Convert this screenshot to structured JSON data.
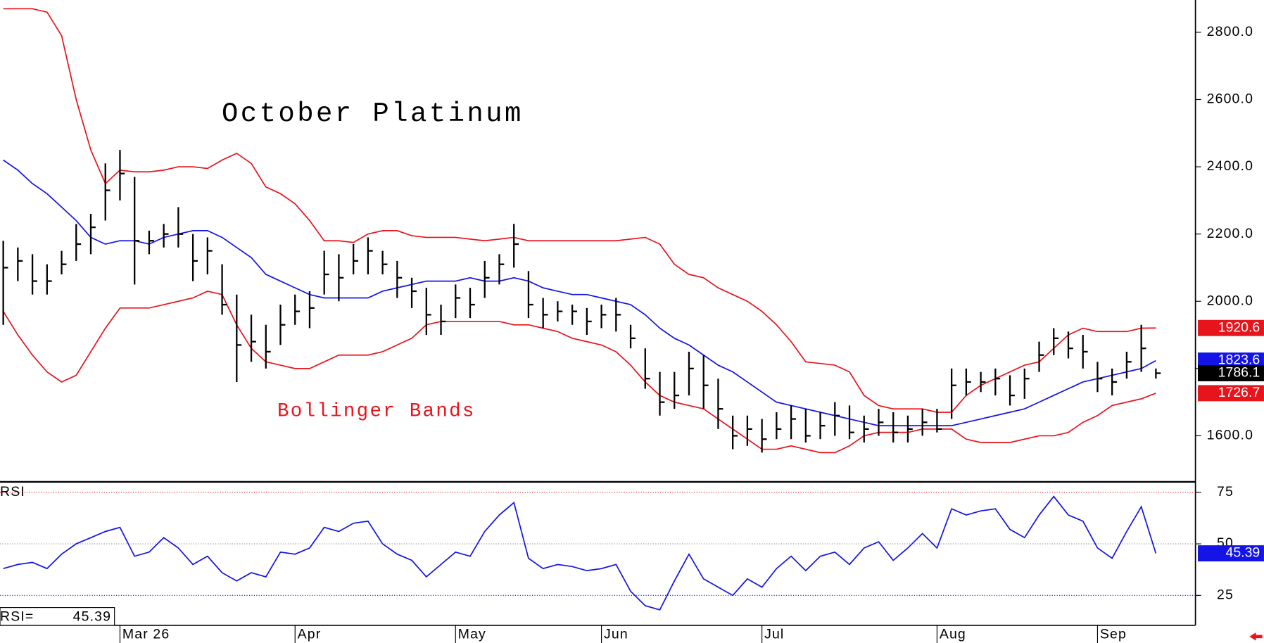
{
  "chart_data": [
    {
      "type": "ohlc",
      "title": "October Platinum",
      "annotation": "Bollinger Bands",
      "color": "#000000",
      "high": [
        2180,
        2160,
        2140,
        2110,
        2150,
        2230,
        2260,
        2410,
        2450,
        2370,
        2210,
        2230,
        2280,
        2200,
        2190,
        2110,
        2020,
        1960,
        1930,
        1990,
        2020,
        2030,
        2150,
        2140,
        2170,
        2190,
        2150,
        2120,
        2070,
        2040,
        1990,
        2050,
        2040,
        2120,
        2140,
        2230,
        2090,
        2010,
        2000,
        1990,
        1980,
        1990,
        2010,
        1930,
        1860,
        1790,
        1790,
        1850,
        1840,
        1770,
        1660,
        1660,
        1650,
        1670,
        1690,
        1680,
        1670,
        1700,
        1690,
        1660,
        1680,
        1670,
        1660,
        1680,
        1680,
        1800,
        1800,
        1790,
        1800,
        1780,
        1800,
        1880,
        1920,
        1910,
        1900,
        1820,
        1800,
        1850,
        1930,
        1800
      ],
      "low": [
        1930,
        2060,
        2020,
        2020,
        2080,
        2120,
        2140,
        2240,
        2300,
        2050,
        2140,
        2160,
        2160,
        2060,
        2080,
        1960,
        1760,
        1820,
        1800,
        1870,
        1930,
        1920,
        2020,
        2000,
        2080,
        2080,
        2080,
        2010,
        1980,
        1900,
        1900,
        1950,
        1950,
        2010,
        2050,
        2100,
        1950,
        1920,
        1940,
        1930,
        1900,
        1920,
        1910,
        1860,
        1740,
        1660,
        1680,
        1720,
        1680,
        1620,
        1560,
        1570,
        1550,
        1590,
        1590,
        1580,
        1590,
        1600,
        1590,
        1580,
        1600,
        1580,
        1580,
        1600,
        1610,
        1650,
        1720,
        1730,
        1720,
        1690,
        1710,
        1790,
        1840,
        1830,
        1800,
        1730,
        1720,
        1770,
        1790,
        1770
      ],
      "close": [
        2100,
        2120,
        2060,
        2060,
        2110,
        2170,
        2220,
        2330,
        2380,
        2180,
        2180,
        2200,
        2200,
        2120,
        2150,
        1990,
        1870,
        1880,
        1850,
        1930,
        1970,
        1980,
        2080,
        2070,
        2120,
        2150,
        2110,
        2070,
        2030,
        1960,
        1940,
        2010,
        1990,
        2070,
        2110,
        2170,
        1990,
        1960,
        1970,
        1970,
        1940,
        1960,
        1960,
        1890,
        1770,
        1700,
        1720,
        1800,
        1750,
        1680,
        1600,
        1620,
        1590,
        1620,
        1650,
        1600,
        1630,
        1660,
        1610,
        1620,
        1640,
        1610,
        1620,
        1640,
        1620,
        1750,
        1760,
        1760,
        1770,
        1720,
        1770,
        1840,
        1890,
        1860,
        1850,
        1770,
        1760,
        1820,
        1860,
        1786.1
      ],
      "series": [
        {
          "color": "#e8141c",
          "values": [
            2870,
            2870,
            2870,
            2860,
            2790,
            2600,
            2450,
            2350,
            2390,
            2385,
            2385,
            2390,
            2400,
            2400,
            2395,
            2420,
            2440,
            2410,
            2340,
            2320,
            2290,
            2240,
            2180,
            2180,
            2175,
            2200,
            2210,
            2210,
            2195,
            2190,
            2190,
            2190,
            2185,
            2180,
            2185,
            2190,
            2180,
            2180,
            2180,
            2180,
            2180,
            2180,
            2180,
            2185,
            2190,
            2170,
            2110,
            2080,
            2070,
            2040,
            2020,
            2000,
            1970,
            1930,
            1880,
            1820,
            1815,
            1810,
            1790,
            1720,
            1690,
            1680,
            1680,
            1680,
            1670,
            1670,
            1720,
            1750,
            1770,
            1790,
            1810,
            1820,
            1860,
            1900,
            1920,
            1910,
            1910,
            1910,
            1920,
            1920.6
          ]
        },
        {
          "color": "#1414e6",
          "values": [
            2420,
            2390,
            2350,
            2320,
            2280,
            2240,
            2190,
            2170,
            2180,
            2180,
            2170,
            2190,
            2200,
            2210,
            2210,
            2190,
            2160,
            2130,
            2080,
            2060,
            2040,
            2020,
            2010,
            2010,
            2010,
            2010,
            2030,
            2040,
            2050,
            2060,
            2060,
            2060,
            2070,
            2060,
            2060,
            2070,
            2060,
            2040,
            2030,
            2020,
            2020,
            2010,
            2000,
            1990,
            1960,
            1920,
            1890,
            1870,
            1840,
            1810,
            1790,
            1760,
            1730,
            1700,
            1690,
            1680,
            1670,
            1660,
            1650,
            1640,
            1630,
            1630,
            1630,
            1630,
            1630,
            1630,
            1640,
            1650,
            1660,
            1670,
            1680,
            1700,
            1720,
            1740,
            1760,
            1770,
            1780,
            1790,
            1800,
            1823.6
          ]
        },
        {
          "color": "#e8141c",
          "values": [
            1970,
            1900,
            1840,
            1790,
            1760,
            1780,
            1850,
            1920,
            1980,
            1980,
            1980,
            1990,
            2000,
            2010,
            2030,
            2020,
            1930,
            1860,
            1820,
            1810,
            1800,
            1800,
            1820,
            1840,
            1840,
            1840,
            1850,
            1870,
            1890,
            1930,
            1940,
            1940,
            1940,
            1940,
            1940,
            1930,
            1930,
            1920,
            1910,
            1890,
            1880,
            1870,
            1850,
            1810,
            1760,
            1720,
            1700,
            1690,
            1680,
            1650,
            1620,
            1590,
            1560,
            1560,
            1570,
            1560,
            1550,
            1550,
            1570,
            1600,
            1610,
            1610,
            1610,
            1620,
            1620,
            1620,
            1590,
            1580,
            1580,
            1580,
            1590,
            1600,
            1600,
            1610,
            1640,
            1660,
            1690,
            1700,
            1710,
            1726.7
          ]
        }
      ],
      "ylim": [
        1463,
        2896
      ],
      "yticks": [
        {
          "value": 1600,
          "label": "1600.0"
        },
        {
          "value": 1800,
          "label": "1800.0"
        },
        {
          "value": 2000,
          "label": "2000.0"
        },
        {
          "value": 2200,
          "label": "2200.0"
        },
        {
          "value": 2400,
          "label": "2400.0"
        },
        {
          "value": 2600,
          "label": "2600.0"
        },
        {
          "value": 2800,
          "label": "2800.0"
        }
      ]
    },
    {
      "type": "line",
      "title": "RSI",
      "readout": "RSI=",
      "color": "#1414e6",
      "categories": [
        null,
        null,
        null,
        null,
        null,
        null,
        null,
        null,
        "Mar 26",
        null,
        null,
        null,
        null,
        null,
        null,
        null,
        null,
        null,
        null,
        null,
        "Apr",
        null,
        null,
        null,
        null,
        null,
        null,
        null,
        null,
        null,
        null,
        "May",
        null,
        null,
        null,
        null,
        null,
        null,
        null,
        null,
        null,
        "Jun",
        null,
        null,
        null,
        null,
        null,
        null,
        null,
        null,
        null,
        null,
        "Jul",
        null,
        null,
        null,
        null,
        null,
        null,
        null,
        null,
        null,
        null,
        null,
        "Aug",
        null,
        null,
        null,
        null,
        null,
        null,
        null,
        null,
        null,
        null,
        "Sep",
        null,
        null,
        null,
        null
      ],
      "values": [
        38,
        40,
        41,
        38,
        45,
        50,
        53,
        56,
        58,
        44,
        46,
        53,
        48,
        40,
        44,
        36,
        32,
        36,
        34,
        46,
        45,
        48,
        58,
        56,
        60,
        61,
        50,
        45,
        42,
        34,
        40,
        46,
        44,
        56,
        64,
        70,
        43,
        38,
        40,
        39,
        37,
        38,
        40,
        27,
        20,
        18,
        32,
        45,
        33,
        29,
        25,
        33,
        29,
        38,
        44,
        37,
        44,
        46,
        40,
        48,
        51,
        42,
        48,
        55,
        48,
        67,
        64,
        66,
        67,
        57,
        53,
        64,
        73,
        64,
        61,
        48,
        43,
        56,
        68,
        45.39
      ],
      "ylim": [
        10.5,
        79.3
      ],
      "yticks": [
        25,
        50,
        75
      ],
      "level_colors": [
        "#1414e6",
        "#888888",
        "#e8141c"
      ]
    }
  ]
}
